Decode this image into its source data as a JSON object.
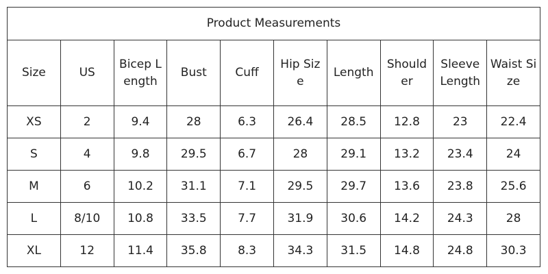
{
  "table": {
    "title": "Product Measurements",
    "header": [
      "Size",
      "US",
      "Bicep Length",
      "Bust",
      "Cuff",
      "Hip Size",
      "Length",
      "Shoulder",
      "Sleeve Length",
      "Waist Size"
    ],
    "rows": [
      [
        "XS",
        "2",
        "9.4",
        "28",
        "6.3",
        "26.4",
        "28.5",
        "12.8",
        "23",
        "22.4"
      ],
      [
        "S",
        "4",
        "9.8",
        "29.5",
        "6.7",
        "28",
        "29.1",
        "13.2",
        "23.4",
        "24"
      ],
      [
        "M",
        "6",
        "10.2",
        "31.1",
        "7.1",
        "29.5",
        "29.7",
        "13.6",
        "23.8",
        "25.6"
      ],
      [
        "L",
        "8/10",
        "10.8",
        "33.5",
        "7.7",
        "31.9",
        "30.6",
        "14.2",
        "24.3",
        "28"
      ],
      [
        "XL",
        "12",
        "11.4",
        "35.8",
        "8.3",
        "34.3",
        "31.5",
        "14.8",
        "24.8",
        "30.3"
      ]
    ]
  }
}
